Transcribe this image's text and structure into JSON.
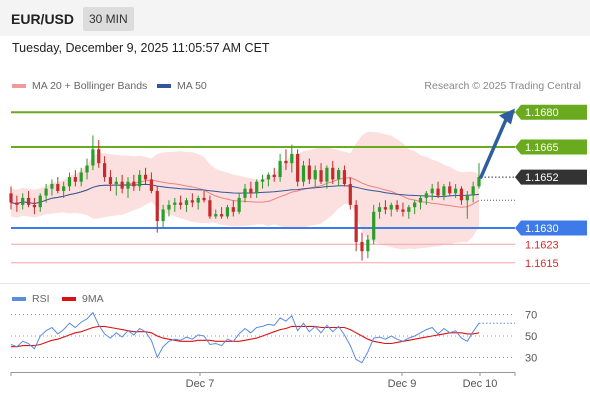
{
  "header": {
    "symbol": "EUR/USD",
    "timeframe": "30 MIN",
    "timestamp": "Tuesday, December 9, 2025 11:05:57 AM CET"
  },
  "legend": {
    "bollinger_label": "MA 20 + Bollinger Bands",
    "ma50_label": "MA 50",
    "rsi_label": "RSI",
    "rsi_ma_label": "9MA"
  },
  "credit": "Research © 2025 Trading Central",
  "colors": {
    "resistance": "#6aaa1e",
    "support": "#3e7be8",
    "support_light": "#f4a6a6",
    "bollinger": "#fbd4d4",
    "ma20": "#f08080",
    "ma50": "#33559a",
    "rsi": "#5b8ce0",
    "rsi_ma": "#dd1111",
    "up": "#2a9d2a",
    "down": "#c62b2b",
    "price_tag": "#333333"
  },
  "chart_data": [
    {
      "type": "candlestick",
      "ylim": [
        1.1608,
        1.1687
      ],
      "x_ticks": [
        "Dec 7",
        "Dec 9",
        "Dec 10"
      ],
      "last_price": 1.1652,
      "levels": [
        {
          "value": 1.168,
          "label": "1.1680",
          "kind": "resistance",
          "tag": "green"
        },
        {
          "value": 1.1665,
          "label": "1.1665",
          "kind": "resistance",
          "tag": "green"
        },
        {
          "value": 1.163,
          "label": "1.1630",
          "kind": "support",
          "tag": "blue"
        },
        {
          "value": 1.1623,
          "label": "1.1623",
          "kind": "support",
          "tag": "text"
        },
        {
          "value": 1.1615,
          "label": "1.1615",
          "kind": "support",
          "tag": "text"
        }
      ],
      "candles": [
        [
          1.1645,
          1.1648,
          1.1638,
          1.1641
        ],
        [
          1.1641,
          1.1644,
          1.1637,
          1.164
        ],
        [
          1.164,
          1.1645,
          1.1638,
          1.1643
        ],
        [
          1.1643,
          1.1646,
          1.1639,
          1.164
        ],
        [
          1.164,
          1.1643,
          1.1636,
          1.1639
        ],
        [
          1.1639,
          1.1645,
          1.1637,
          1.1644
        ],
        [
          1.1644,
          1.1649,
          1.1641,
          1.1647
        ],
        [
          1.1647,
          1.1651,
          1.1644,
          1.1649
        ],
        [
          1.1649,
          1.1652,
          1.1645,
          1.1646
        ],
        [
          1.1646,
          1.165,
          1.1643,
          1.1648
        ],
        [
          1.1648,
          1.1654,
          1.1646,
          1.1652
        ],
        [
          1.1652,
          1.1655,
          1.1648,
          1.165
        ],
        [
          1.165,
          1.1656,
          1.1648,
          1.1654
        ],
        [
          1.1654,
          1.166,
          1.1651,
          1.1657
        ],
        [
          1.1657,
          1.167,
          1.1655,
          1.1664
        ],
        [
          1.1664,
          1.1668,
          1.1656,
          1.1658
        ],
        [
          1.1658,
          1.1661,
          1.165,
          1.1652
        ],
        [
          1.1652,
          1.1655,
          1.1646,
          1.1649
        ],
        [
          1.1649,
          1.1652,
          1.1644,
          1.165
        ],
        [
          1.165,
          1.1653,
          1.1645,
          1.1647
        ],
        [
          1.1647,
          1.1652,
          1.1643,
          1.165
        ],
        [
          1.165,
          1.1653,
          1.1646,
          1.1648
        ],
        [
          1.1648,
          1.1655,
          1.1646,
          1.1653
        ],
        [
          1.1653,
          1.1656,
          1.1649,
          1.1651
        ],
        [
          1.1651,
          1.1654,
          1.1645,
          1.1646
        ],
        [
          1.1646,
          1.1648,
          1.1628,
          1.1633
        ],
        [
          1.1633,
          1.164,
          1.163,
          1.1638
        ],
        [
          1.1638,
          1.1642,
          1.1635,
          1.164
        ],
        [
          1.164,
          1.1643,
          1.1637,
          1.1641
        ],
        [
          1.1641,
          1.1644,
          1.1638,
          1.164
        ],
        [
          1.164,
          1.1643,
          1.1637,
          1.1642
        ],
        [
          1.1642,
          1.1645,
          1.1639,
          1.1641
        ],
        [
          1.1641,
          1.1644,
          1.1638,
          1.1643
        ],
        [
          1.1643,
          1.1646,
          1.1641,
          1.1642
        ],
        [
          1.1642,
          1.1644,
          1.1634,
          1.1635
        ],
        [
          1.1635,
          1.1638,
          1.1634,
          1.1636
        ],
        [
          1.1636,
          1.1639,
          1.1634,
          1.1635
        ],
        [
          1.1635,
          1.164,
          1.1634,
          1.1639
        ],
        [
          1.1639,
          1.1642,
          1.1635,
          1.1637
        ],
        [
          1.1637,
          1.1645,
          1.1636,
          1.1643
        ],
        [
          1.1643,
          1.1649,
          1.1641,
          1.1647
        ],
        [
          1.1647,
          1.165,
          1.1643,
          1.1645
        ],
        [
          1.1645,
          1.1651,
          1.1643,
          1.165
        ],
        [
          1.165,
          1.1653,
          1.1647,
          1.1651
        ],
        [
          1.1651,
          1.1654,
          1.1648,
          1.1653
        ],
        [
          1.1653,
          1.1656,
          1.165,
          1.1652
        ],
        [
          1.1652,
          1.1662,
          1.165,
          1.1659
        ],
        [
          1.1659,
          1.1664,
          1.1655,
          1.1658
        ],
        [
          1.1658,
          1.1666,
          1.1654,
          1.1662
        ],
        [
          1.1662,
          1.1664,
          1.1648,
          1.165
        ],
        [
          1.165,
          1.1659,
          1.1648,
          1.1657
        ],
        [
          1.1657,
          1.166,
          1.1649,
          1.1651
        ],
        [
          1.1651,
          1.1657,
          1.1648,
          1.1655
        ],
        [
          1.1655,
          1.1658,
          1.1649,
          1.165
        ],
        [
          1.165,
          1.1657,
          1.1647,
          1.1656
        ],
        [
          1.1656,
          1.1659,
          1.1649,
          1.1651
        ],
        [
          1.1651,
          1.1656,
          1.1648,
          1.1655
        ],
        [
          1.1655,
          1.1657,
          1.1648,
          1.1649
        ],
        [
          1.1649,
          1.1652,
          1.1638,
          1.164
        ],
        [
          1.164,
          1.1642,
          1.162,
          1.1624
        ],
        [
          1.1624,
          1.1628,
          1.1616,
          1.162
        ],
        [
          1.162,
          1.1627,
          1.1617,
          1.1625
        ],
        [
          1.1625,
          1.164,
          1.1623,
          1.1637
        ],
        [
          1.1637,
          1.1641,
          1.1634,
          1.1639
        ],
        [
          1.1639,
          1.1642,
          1.1636,
          1.1638
        ],
        [
          1.1638,
          1.1641,
          1.1635,
          1.164
        ],
        [
          1.164,
          1.1642,
          1.1637,
          1.1638
        ],
        [
          1.1638,
          1.1641,
          1.1635,
          1.1637
        ],
        [
          1.1637,
          1.164,
          1.1634,
          1.1639
        ],
        [
          1.1639,
          1.1642,
          1.1636,
          1.1641
        ],
        [
          1.1641,
          1.1644,
          1.1638,
          1.1643
        ],
        [
          1.1643,
          1.1646,
          1.164,
          1.1645
        ],
        [
          1.1645,
          1.1649,
          1.1642,
          1.1647
        ],
        [
          1.1647,
          1.165,
          1.1643,
          1.1644
        ],
        [
          1.1644,
          1.1649,
          1.1642,
          1.1648
        ],
        [
          1.1648,
          1.165,
          1.1644,
          1.1645
        ],
        [
          1.1645,
          1.1649,
          1.1643,
          1.1647
        ],
        [
          1.1647,
          1.1648,
          1.164,
          1.1642
        ],
        [
          1.1642,
          1.1646,
          1.1634,
          1.1644
        ],
        [
          1.1644,
          1.165,
          1.1641,
          1.1648
        ],
        [
          1.1648,
          1.1658,
          1.1647,
          1.1652
        ]
      ]
    },
    {
      "type": "line",
      "series_names": [
        "RSI",
        "9MA"
      ],
      "ylim": [
        20,
        80
      ],
      "y_ticks": [
        70,
        50,
        30
      ],
      "rsi": [
        42,
        40,
        45,
        43,
        38,
        50,
        55,
        58,
        52,
        56,
        62,
        58,
        63,
        66,
        72,
        60,
        52,
        48,
        53,
        49,
        55,
        51,
        57,
        54,
        46,
        30,
        40,
        45,
        47,
        46,
        49,
        47,
        51,
        50,
        42,
        43,
        41,
        47,
        45,
        52,
        57,
        53,
        58,
        59,
        61,
        60,
        67,
        64,
        69,
        55,
        62,
        54,
        59,
        53,
        60,
        54,
        59,
        51,
        41,
        28,
        25,
        35,
        48,
        49,
        47,
        50,
        47,
        45,
        48,
        50,
        53,
        56,
        58,
        52,
        57,
        53,
        55,
        48,
        45,
        54,
        62
      ],
      "rsi_ma": [
        40,
        40,
        41,
        41,
        41,
        42,
        44,
        46,
        47,
        49,
        51,
        53,
        54,
        56,
        58,
        59,
        59,
        58,
        57,
        56,
        55,
        54,
        54,
        54,
        53,
        50,
        48,
        47,
        46,
        45,
        45,
        45,
        46,
        46,
        46,
        45,
        45,
        45,
        45,
        45,
        46,
        47,
        48,
        50,
        52,
        54,
        56,
        57,
        59,
        59,
        59,
        59,
        59,
        58,
        58,
        58,
        58,
        58,
        56,
        53,
        50,
        47,
        45,
        44,
        43,
        43,
        44,
        45,
        46,
        47,
        48,
        49,
        50,
        51,
        52,
        53,
        53,
        53,
        52,
        52,
        53
      ]
    }
  ]
}
